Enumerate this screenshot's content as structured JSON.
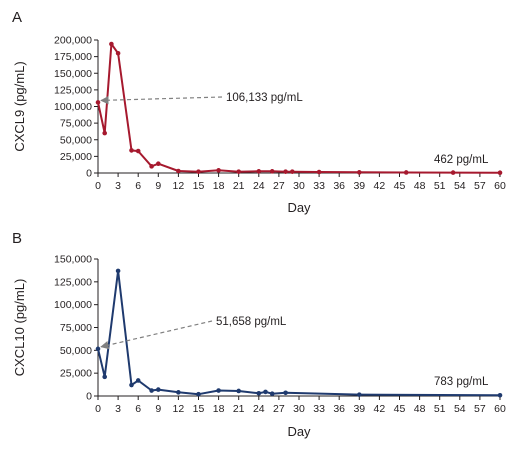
{
  "chart_data": [
    {
      "type": "line",
      "panel_label": "A",
      "xlabel": "Day",
      "ylabel": "CXCL9 (pg/mL)",
      "color": "#a6192e",
      "xlim": [
        0,
        60
      ],
      "ylim": [
        0,
        200000
      ],
      "x_ticks": [
        0,
        3,
        6,
        9,
        12,
        15,
        18,
        21,
        24,
        27,
        30,
        33,
        36,
        39,
        42,
        45,
        48,
        51,
        54,
        57,
        60
      ],
      "x_tick_labels": [
        "0",
        "3",
        "6",
        "9",
        "12",
        "15",
        "18",
        "21",
        "24",
        "27",
        "30",
        "33",
        "36",
        "39",
        "42",
        "45",
        "48",
        "51",
        "54",
        "57",
        "60"
      ],
      "y_ticks": [
        0,
        25000,
        50000,
        75000,
        100000,
        125000,
        150000,
        175000,
        200000
      ],
      "y_tick_labels": [
        "0",
        "25,000",
        "50,000",
        "75,000",
        "100,000",
        "125,000",
        "150,000",
        "175,000",
        "200,000"
      ],
      "series": [
        {
          "x": [
            0,
            1,
            2,
            3,
            5,
            6,
            8,
            9,
            12,
            15,
            18,
            21,
            24,
            26,
            28,
            29,
            33,
            39,
            46,
            53,
            60
          ],
          "y": [
            106133,
            60000,
            194000,
            180000,
            34000,
            33000,
            10000,
            14000,
            3000,
            2000,
            4000,
            2000,
            2500,
            2500,
            2000,
            2000,
            1500,
            1000,
            800,
            600,
            462
          ]
        }
      ],
      "annotations": [
        {
          "text": "106,133 pg/mL",
          "point_x": 0,
          "point_y": 106133,
          "arrow": true
        },
        {
          "text": "462 pg/mL",
          "point_x": 60,
          "point_y": 462,
          "arrow": false
        }
      ]
    },
    {
      "type": "line",
      "panel_label": "B",
      "xlabel": "Day",
      "ylabel": "CXCL10 (pg/mL)",
      "color": "#1f3a6e",
      "xlim": [
        0,
        60
      ],
      "ylim": [
        0,
        150000
      ],
      "x_ticks": [
        0,
        3,
        6,
        9,
        12,
        15,
        18,
        21,
        24,
        27,
        30,
        33,
        36,
        39,
        42,
        45,
        48,
        51,
        54,
        57,
        60
      ],
      "x_tick_labels": [
        "0",
        "3",
        "6",
        "9",
        "12",
        "15",
        "18",
        "21",
        "24",
        "27",
        "30",
        "33",
        "36",
        "39",
        "42",
        "45",
        "48",
        "51",
        "54",
        "57",
        "60"
      ],
      "y_ticks": [
        0,
        25000,
        50000,
        75000,
        100000,
        125000,
        150000
      ],
      "y_tick_labels": [
        "0",
        "25,000",
        "50,000",
        "75,000",
        "100,000",
        "125,000",
        "150,000"
      ],
      "series": [
        {
          "x": [
            0,
            1,
            3,
            5,
            6,
            8,
            9,
            12,
            15,
            18,
            21,
            24,
            25,
            26,
            28,
            39,
            60
          ],
          "y": [
            51658,
            21000,
            137000,
            12000,
            17000,
            6000,
            7000,
            4000,
            2000,
            6000,
            5500,
            3000,
            4500,
            2500,
            3500,
            1500,
            783
          ]
        }
      ],
      "annotations": [
        {
          "text": "51,658 pg/mL",
          "point_x": 0,
          "point_y": 51658,
          "arrow": true
        },
        {
          "text": "783 pg/mL",
          "point_x": 60,
          "point_y": 783,
          "arrow": false
        }
      ]
    }
  ]
}
